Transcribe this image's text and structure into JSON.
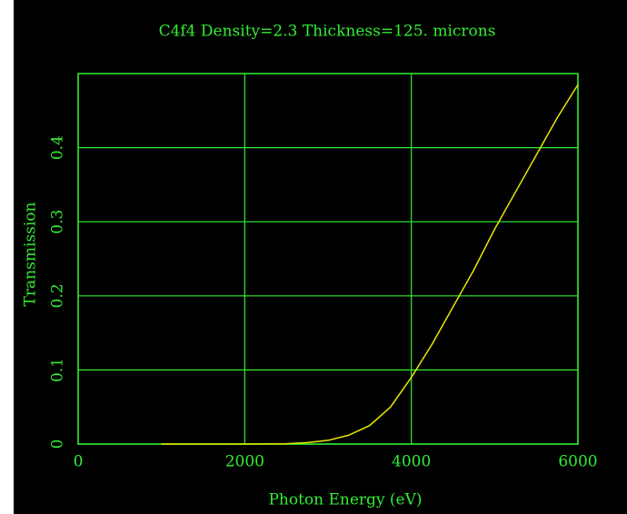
{
  "chart_data": {
    "type": "line",
    "title": "C4f4 Density=2.3 Thickness=125. microns",
    "x_label": "Photon Energy (eV)",
    "y_label": "Transmission",
    "x": [
      1000,
      1500,
      2000,
      2500,
      2750,
      3000,
      3250,
      3500,
      3750,
      4000,
      4250,
      4500,
      4750,
      5000,
      5250,
      5500,
      5750,
      6000
    ],
    "series": [
      {
        "color": "#e8e800",
        "values": [
          0,
          0,
          0,
          0.0005,
          0.002,
          0.005,
          0.012,
          0.025,
          0.05,
          0.09,
          0.135,
          0.185,
          0.235,
          0.29,
          0.34,
          0.39,
          0.44,
          0.485
        ]
      }
    ],
    "xlim": [
      0,
      6000
    ],
    "xticks": [
      0,
      2000,
      4000,
      6000
    ],
    "ylim": [
      0,
      0.5
    ],
    "yticks": [
      0,
      0.1,
      0.2,
      0.3,
      0.4
    ],
    "grid": true,
    "axis_color": "#33ee33"
  }
}
